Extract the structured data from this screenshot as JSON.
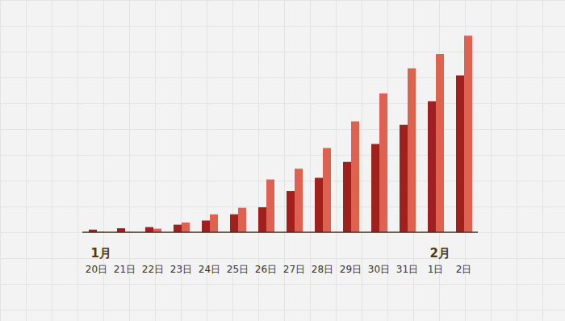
{
  "chart_data": {
    "type": "bar",
    "categories": [
      "20日",
      "21日",
      "22日",
      "23日",
      "24日",
      "25日",
      "26日",
      "27日",
      "28日",
      "29日",
      "30日",
      "31日",
      "1日",
      "2日"
    ],
    "series": [
      {
        "color": "#a11f1c",
        "values": [
          291,
          440,
          571,
          830,
          1287,
          1975,
          2744,
          4515,
          5974,
          7711,
          9692,
          11791,
          14380,
          17205
        ]
      },
      {
        "color": "#df6150",
        "values": [
          54,
          37,
          393,
          1072,
          1965,
          2684,
          5794,
          6973,
          9239,
          12167,
          15238,
          17988,
          19544,
          21558
        ]
      }
    ],
    "annotations": [
      {
        "text": "1月",
        "category": "20日"
      },
      {
        "text": "2月",
        "category": "1日"
      }
    ],
    "ylim": [
      0,
      23000
    ],
    "tick_labels": "x"
  }
}
